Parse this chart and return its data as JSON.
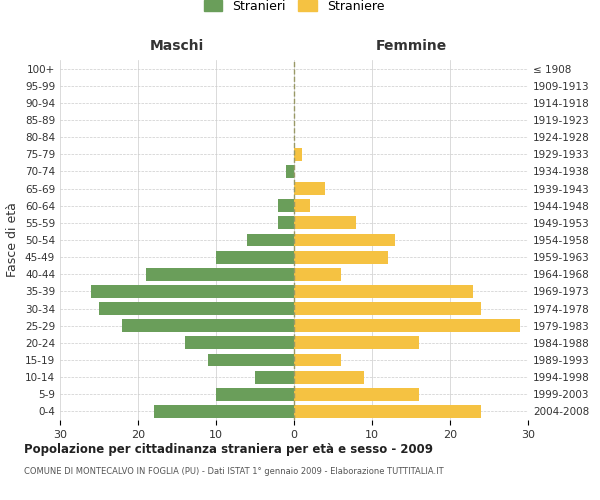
{
  "age_groups_bottom_to_top": [
    "0-4",
    "5-9",
    "10-14",
    "15-19",
    "20-24",
    "25-29",
    "30-34",
    "35-39",
    "40-44",
    "45-49",
    "50-54",
    "55-59",
    "60-64",
    "65-69",
    "70-74",
    "75-79",
    "80-84",
    "85-89",
    "90-94",
    "95-99",
    "100+"
  ],
  "birth_years_bottom_to_top": [
    "2004-2008",
    "1999-2003",
    "1994-1998",
    "1989-1993",
    "1984-1988",
    "1979-1983",
    "1974-1978",
    "1969-1973",
    "1964-1968",
    "1959-1963",
    "1954-1958",
    "1949-1953",
    "1944-1948",
    "1939-1943",
    "1934-1938",
    "1929-1933",
    "1924-1928",
    "1919-1923",
    "1914-1918",
    "1909-1913",
    "≤ 1908"
  ],
  "maschi_bottom_to_top": [
    18,
    10,
    5,
    11,
    14,
    22,
    25,
    26,
    19,
    10,
    6,
    2,
    2,
    0,
    1,
    0,
    0,
    0,
    0,
    0,
    0
  ],
  "femmine_bottom_to_top": [
    24,
    16,
    9,
    6,
    16,
    29,
    24,
    23,
    6,
    12,
    13,
    8,
    2,
    4,
    0,
    1,
    0,
    0,
    0,
    0,
    0
  ],
  "color_maschi": "#6a9e5a",
  "color_femmine": "#f5c242",
  "color_grid": "#cccccc",
  "color_dashed": "#999966",
  "title_main": "Popolazione per cittadinanza straniera per età e sesso - 2009",
  "title_sub": "COMUNE DI MONTECALVO IN FOGLIA (PU) - Dati ISTAT 1° gennaio 2009 - Elaborazione TUTTITALIA.IT",
  "label_maschi": "Maschi",
  "label_femmine": "Femmine",
  "legend_stranieri": "Stranieri",
  "legend_straniere": "Straniere",
  "ylabel_left": "Fasce di età",
  "xlim": 30,
  "background_color": "#ffffff"
}
